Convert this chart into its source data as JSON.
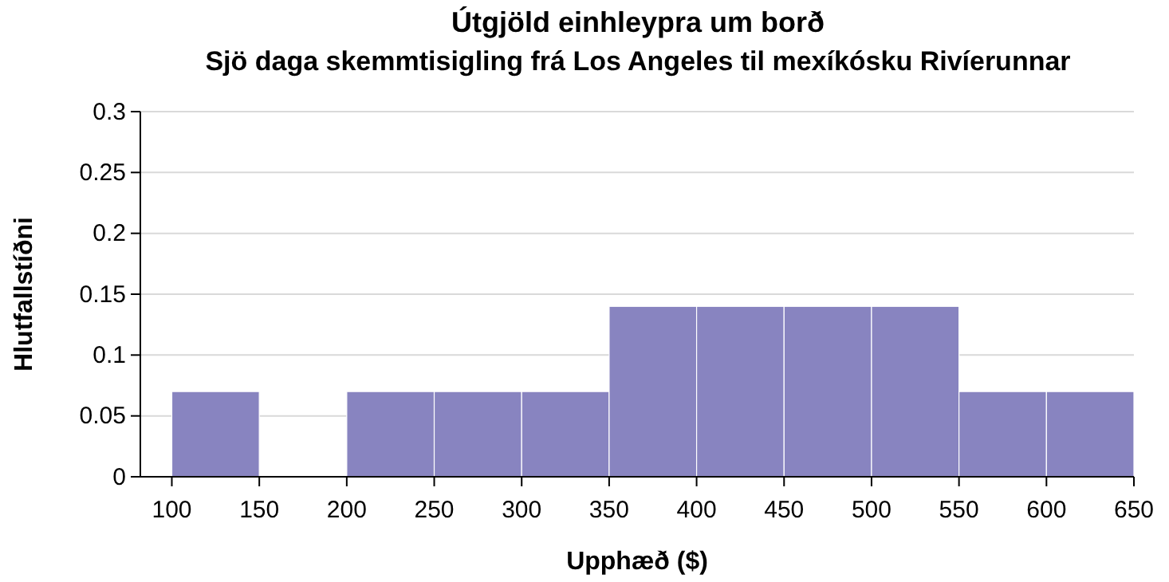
{
  "chart_data": {
    "type": "histogram",
    "title": "Útgjöld einhleypra um borð",
    "subtitle": "Sjö daga skemmtisigling frá Los Angeles til mexíkósku Rivíerunnar",
    "xlabel": "Upphæð ($)",
    "ylabel": "Hlutfallstíðni",
    "bins": [
      100,
      150,
      200,
      250,
      300,
      350,
      400,
      450,
      500,
      550,
      600,
      650
    ],
    "values": [
      0.07,
      0,
      0.07,
      0.07,
      0.07,
      0.14,
      0.14,
      0.14,
      0.14,
      0.07,
      0.07
    ],
    "color": "#8884c0",
    "xlim": [
      82,
      650
    ],
    "xticks": [
      100,
      150,
      200,
      250,
      300,
      350,
      400,
      450,
      500,
      550,
      600,
      650
    ],
    "ylim": [
      0,
      0.3
    ],
    "yticks": [
      0,
      0.05,
      0.1,
      0.15,
      0.2,
      0.25,
      0.3
    ],
    "grid": "y"
  }
}
